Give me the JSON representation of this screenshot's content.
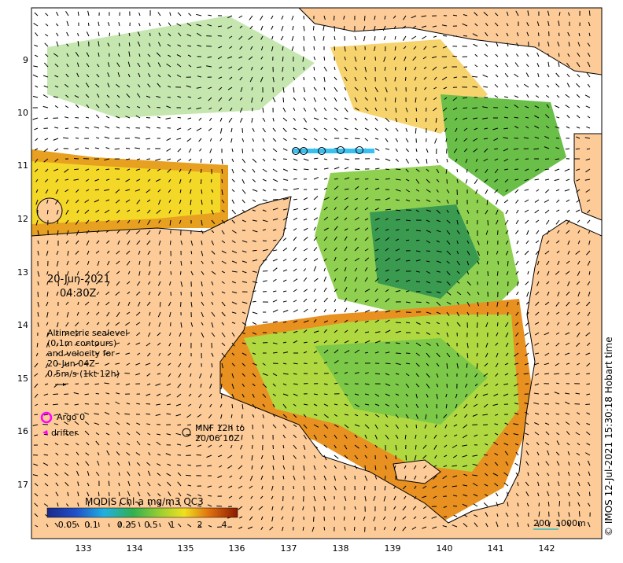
{
  "map": {
    "date": "20-Jun-2021",
    "time": "04:30Z",
    "legend_sealevel": [
      "Altimetric sealevel",
      "(0.1m contours)",
      "and velocity for",
      "20-Jun 04Z",
      "0.5m/s (1kt 12h)"
    ],
    "argo_label": "Argo 0",
    "drifter_label": "drifter",
    "mnf_label": [
      "MNF 12h to",
      "20/06 10Z"
    ],
    "colorbar_title": "MODIS Chl-a mg/m3 OC3",
    "colorbar_ticks": [
      "0.05",
      "0.1",
      "0.25",
      "0.5",
      "1",
      "2",
      "4"
    ],
    "scale_label": "200  1000m",
    "copyright": "© IMOS 12-Jul-2021 15:30:18 Hobart time",
    "y_ticks": [
      "9",
      "10",
      "11",
      "12",
      "13",
      "14",
      "15",
      "16",
      "17"
    ],
    "x_ticks": [
      "133",
      "134",
      "135",
      "136",
      "137",
      "138",
      "139",
      "140",
      "141",
      "142"
    ],
    "colors": {
      "land": "#fccb98",
      "coast": "#000000",
      "chl_low": "#2a8a4a",
      "chl_high": "#8a2a00",
      "argo": "#ff00ff"
    }
  }
}
